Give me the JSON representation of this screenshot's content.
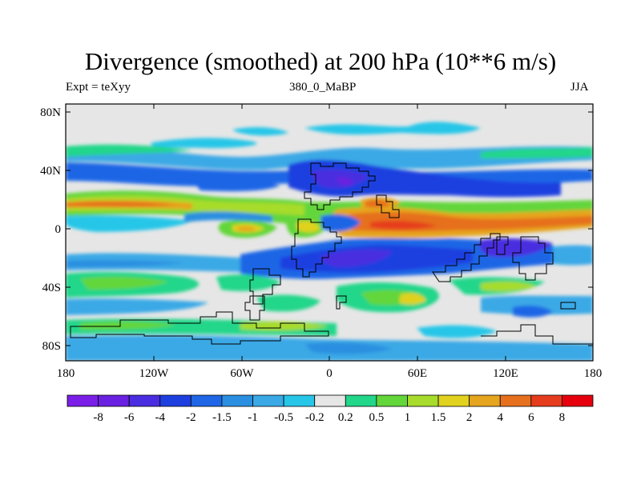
{
  "header": {
    "title": "Divergence (smoothed) at 200 hPa (10**6 m/s)",
    "experiment": "Expt = teXyy",
    "time_period": "380_0_MaBP",
    "season": "JJA"
  },
  "axes": {
    "lat_ticks": [
      "80N",
      "40N",
      "0",
      "40S",
      "80S"
    ],
    "lon_ticks": [
      "180",
      "120W",
      "60W",
      "0",
      "60E",
      "120E",
      "180"
    ]
  },
  "colorbar": {
    "labels": [
      "-8",
      "-6",
      "-4",
      "-2",
      "-1.5",
      "-1",
      "-0.5",
      "-0.2",
      "0.2",
      "0.5",
      "1",
      "1.5",
      "2",
      "4",
      "6",
      "8"
    ],
    "colors": [
      "#7b1fe8",
      "#6a20e0",
      "#4a2de0",
      "#1e3fe0",
      "#1f66e6",
      "#2a8fe0",
      "#3aa9e6",
      "#27c6e8",
      "#e6e6e6",
      "#22d68a",
      "#63d63a",
      "#a7dc2c",
      "#e0d21e",
      "#e6a51e",
      "#e6701e",
      "#e63c1e",
      "#e6000e"
    ]
  }
}
